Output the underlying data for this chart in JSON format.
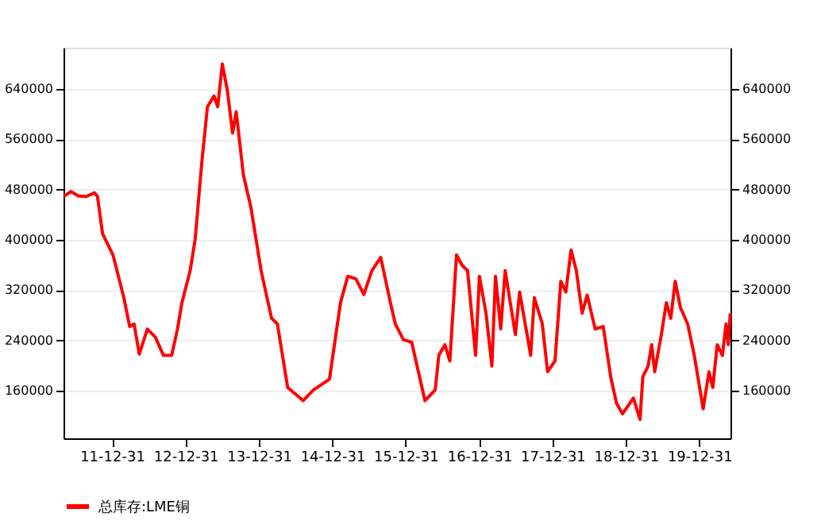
{
  "chart_data": {
    "type": "line",
    "x": [
      "2011-05-05",
      "2011-06-10",
      "2011-07-16",
      "2011-08-25",
      "2011-10-05",
      "2011-10-20",
      "2011-11-14",
      "2012-01-05",
      "2012-02-28",
      "2012-03-28",
      "2012-04-19",
      "2012-05-15",
      "2012-06-24",
      "2012-08-03",
      "2012-09-12",
      "2012-10-23",
      "2012-11-21",
      "2012-12-13",
      "2013-01-23",
      "2013-02-17",
      "2013-03-21",
      "2013-04-19",
      "2013-05-22",
      "2013-06-09",
      "2013-07-02",
      "2013-07-27",
      "2013-08-22",
      "2013-09-09",
      "2013-10-15",
      "2013-11-21",
      "2014-01-11",
      "2014-03-04",
      "2014-04-02",
      "2014-05-23",
      "2014-08-08",
      "2014-09-28",
      "2014-12-17",
      "2015-02-10",
      "2015-03-18",
      "2015-04-27",
      "2015-06-06",
      "2015-07-16",
      "2015-08-29",
      "2015-10-16",
      "2015-11-10",
      "2015-12-20",
      "2016-01-30",
      "2016-04-05",
      "2016-05-26",
      "2016-06-13",
      "2016-07-13",
      "2016-08-07",
      "2016-09-09",
      "2016-10-08",
      "2016-11-03",
      "2016-12-13",
      "2017-01-01",
      "2017-02-03",
      "2017-03-04",
      "2017-03-22",
      "2017-04-17",
      "2017-05-09",
      "2017-06-29",
      "2017-07-20",
      "2017-09-13",
      "2017-10-01",
      "2017-11-10",
      "2017-12-06",
      "2018-01-12",
      "2018-02-10",
      "2018-03-07",
      "2018-04-02",
      "2018-04-28",
      "2018-05-27",
      "2018-06-21",
      "2018-07-31",
      "2018-09-09",
      "2018-10-16",
      "2018-11-14",
      "2018-12-14",
      "2019-02-06",
      "2019-03-11",
      "2019-03-25",
      "2019-04-20",
      "2019-05-08",
      "2019-05-23",
      "2019-06-25",
      "2019-07-20",
      "2019-08-11",
      "2019-09-02",
      "2019-09-28",
      "2019-11-03",
      "2019-12-06",
      "2020-01-19",
      "2020-02-17",
      "2020-03-07",
      "2020-03-29",
      "2020-04-24",
      "2020-05-12",
      "2020-05-23",
      "2020-06-02"
    ],
    "series": [
      {
        "name": "总库存:LME铜",
        "color": "#ff0000",
        "values": [
          469000,
          477000,
          470000,
          469000,
          475000,
          469000,
          410000,
          376000,
          308000,
          262000,
          266000,
          218000,
          258000,
          245000,
          216000,
          216000,
          258000,
          300000,
          351000,
          401000,
          520000,
          612000,
          629000,
          612000,
          680000,
          638000,
          570000,
          604000,
          503000,
          452000,
          351000,
          275000,
          266000,
          165000,
          144000,
          161000,
          178000,
          300000,
          342000,
          338000,
          313000,
          351000,
          372000,
          300000,
          266000,
          241000,
          237000,
          144000,
          161000,
          216000,
          233000,
          207000,
          376000,
          359000,
          351000,
          216000,
          342000,
          283000,
          199000,
          342000,
          258000,
          351000,
          249000,
          317000,
          216000,
          308000,
          266000,
          190000,
          207000,
          334000,
          317000,
          384000,
          351000,
          283000,
          312000,
          258000,
          262000,
          182000,
          140000,
          123000,
          148000,
          114000,
          182000,
          199000,
          233000,
          190000,
          249000,
          300000,
          275000,
          334000,
          292000,
          266000,
          216000,
          131000,
          190000,
          165000,
          233000,
          216000,
          266000,
          233000,
          283000
        ]
      }
    ],
    "xlim": [
      "2011-05-04",
      "2020-06-03"
    ],
    "xticks": [
      {
        "value": "2011-12-31",
        "label": "11-12-31"
      },
      {
        "value": "2012-12-31",
        "label": "12-12-31"
      },
      {
        "value": "2013-12-31",
        "label": "13-12-31"
      },
      {
        "value": "2014-12-31",
        "label": "14-12-31"
      },
      {
        "value": "2015-12-31",
        "label": "15-12-31"
      },
      {
        "value": "2016-12-31",
        "label": "16-12-31"
      },
      {
        "value": "2017-12-31",
        "label": "17-12-31"
      },
      {
        "value": "2018-12-31",
        "label": "18-12-31"
      },
      {
        "value": "2019-12-31",
        "label": "19-12-31"
      }
    ],
    "ylim": [
      84000,
      706000
    ],
    "yticks": [
      160000,
      240000,
      320000,
      400000,
      480000,
      560000,
      640000
    ],
    "y2lim": [
      84000,
      706000
    ],
    "y2ticks": [
      160000,
      240000,
      320000,
      400000,
      480000,
      560000,
      640000
    ],
    "grid": "y",
    "legend": "bottom",
    "marker": "none",
    "line_style": "solid"
  }
}
